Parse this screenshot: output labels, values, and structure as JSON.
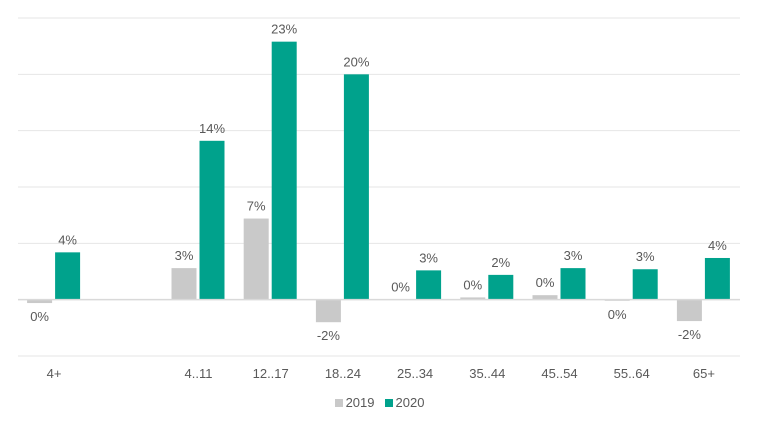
{
  "chart_data": {
    "type": "bar",
    "categories": [
      "4+",
      "",
      "4..11",
      "12..17",
      "18..24",
      "25..34",
      "35..44",
      "45..54",
      "55..64",
      "65+"
    ],
    "series": [
      {
        "name": "2019",
        "color": "#c9c9c9",
        "values": [
          -0.3,
          null,
          2.8,
          7.2,
          -2.0,
          0.0,
          0.2,
          0.4,
          -0.1,
          -1.9
        ],
        "labels": [
          "0%",
          "",
          "3%",
          "7%",
          "-2%",
          "0%",
          "0%",
          "0%",
          "0%",
          "-2%"
        ]
      },
      {
        "name": "2020",
        "color": "#00a28c",
        "values": [
          4.2,
          null,
          14.1,
          22.9,
          20.0,
          2.6,
          2.2,
          2.8,
          2.7,
          3.7
        ],
        "labels": [
          "4%",
          "",
          "14%",
          "23%",
          "20%",
          "3%",
          "2%",
          "3%",
          "3%",
          "4%"
        ]
      }
    ],
    "ylim": [
      -5,
      25
    ],
    "ytick_step": 5,
    "grid": true,
    "y_axis_labels_shown": false,
    "legend_position": "bottom",
    "xlabel": "",
    "ylabel": ""
  }
}
